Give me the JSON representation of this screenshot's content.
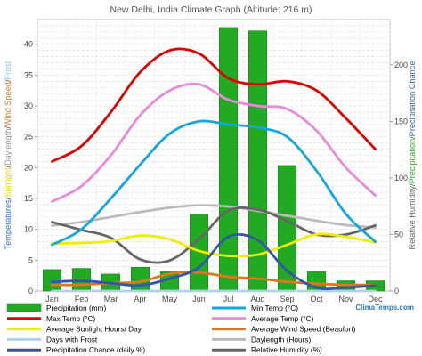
{
  "title": "New Delhi, India Climate Graph (Altitude: 216 m)",
  "brand": "ClimaTemps.com",
  "left_axis_label": [
    {
      "text": "Temperatures",
      "color": "#2277dd"
    },
    {
      "text": "/",
      "color": "#444444"
    },
    {
      "text": "Sunlight",
      "color": "#e8d800"
    },
    {
      "text": "/",
      "color": "#444444"
    },
    {
      "text": "Daylength",
      "color": "#999999"
    },
    {
      "text": "/",
      "color": "#444444"
    },
    {
      "text": "Wind Speed",
      "color": "#dd7722"
    },
    {
      "text": "/",
      "color": "#444444"
    },
    {
      "text": "Frost",
      "color": "#88c8ee"
    }
  ],
  "right_axis_label": [
    {
      "text": "Relative Humidity",
      "color": "#666666"
    },
    {
      "text": "/",
      "color": "#444444"
    },
    {
      "text": "Precipitation",
      "color": "#22aa22"
    },
    {
      "text": "/",
      "color": "#444444"
    },
    {
      "text": "Precipitation Chance",
      "color": "#3366aa"
    }
  ],
  "chart_data": {
    "type": "bar",
    "categories": [
      "Jan",
      "Feb",
      "Mar",
      "Apr",
      "May",
      "Jun",
      "Jul",
      "Aug",
      "Sep",
      "Oct",
      "Nov",
      "Dec"
    ],
    "y_left": {
      "ylim": [
        0,
        44
      ],
      "ticks": [
        0,
        5,
        10,
        15,
        20,
        25,
        30,
        35,
        40
      ]
    },
    "y_right": {
      "ylim": [
        0,
        240
      ],
      "ticks": [
        0,
        50,
        100,
        150,
        200
      ]
    },
    "grid": true,
    "bars": {
      "name": "Precipitation (mm)",
      "color": "#22aa22",
      "axis": "right",
      "values": [
        19,
        20,
        15,
        21,
        17,
        68,
        233,
        230,
        111,
        17,
        9,
        9
      ]
    },
    "series": [
      {
        "name": "Max Temp (°C)",
        "color": "#dd0000",
        "axis": "left",
        "values": [
          21,
          23.5,
          29,
          35.5,
          39,
          38.5,
          34.5,
          33.5,
          34,
          32.5,
          28,
          23
        ]
      },
      {
        "name": "Min Temp (°C)",
        "color": "#11a8e0",
        "axis": "left",
        "values": [
          7.5,
          10,
          15,
          20.5,
          25.5,
          27.5,
          27,
          26.5,
          25,
          19.5,
          12.5,
          8
        ]
      },
      {
        "name": "Average Temp (°C)",
        "color": "#e88ad8",
        "axis": "left",
        "values": [
          14.5,
          17,
          22,
          28.5,
          32.5,
          33.5,
          31,
          30,
          29.5,
          26,
          20,
          15.5
        ]
      },
      {
        "name": "Average Sunlight Hours/ Day",
        "color": "#f0ee00",
        "axis": "left",
        "values": [
          7.7,
          7.8,
          8.1,
          9,
          8.4,
          6.5,
          5.7,
          5.9,
          7.5,
          9.2,
          8.8,
          7.9
        ]
      },
      {
        "name": "Average Wind Speed (Beaufort)",
        "color": "#dd7722",
        "axis": "left",
        "values": [
          1,
          1,
          1.3,
          1.5,
          2.8,
          3,
          2.3,
          2,
          1.5,
          1.2,
          1,
          1
        ]
      },
      {
        "name": "Days with Frost",
        "color": "#aad4ee",
        "axis": "left",
        "values": [
          0,
          0,
          0,
          0,
          0,
          0,
          0,
          0,
          0,
          0,
          0,
          0
        ]
      },
      {
        "name": "Daylength (Hours)",
        "color": "#bbbbbb",
        "axis": "left",
        "values": [
          10.6,
          11.2,
          12,
          12.8,
          13.5,
          13.9,
          13.7,
          13,
          12.2,
          11.4,
          10.7,
          10.3
        ]
      },
      {
        "name": "Precipitation Chance (daily %)",
        "color": "#3355aa",
        "axis": "right",
        "values": [
          8,
          9,
          7,
          5,
          11,
          21,
          48,
          45,
          18,
          3,
          3,
          5
        ]
      },
      {
        "name": "Relative Humidity (%)",
        "color": "#666666",
        "axis": "right",
        "values": [
          61,
          54,
          47,
          28,
          27,
          46,
          71,
          72,
          62,
          50,
          50,
          58
        ]
      }
    ],
    "legend": [
      {
        "label": "Precipitation (mm)",
        "color": "#22aa22",
        "kind": "bar"
      },
      {
        "label": "Min Temp (°C)",
        "color": "#11a8e0",
        "kind": "line"
      },
      {
        "label": "Max Temp (°C)",
        "color": "#dd0000",
        "kind": "line"
      },
      {
        "label": "Average Temp (°C)",
        "color": "#e88ad8",
        "kind": "line"
      },
      {
        "label": "Average Sunlight Hours/ Day",
        "color": "#f0ee00",
        "kind": "line"
      },
      {
        "label": "Average Wind Speed (Beaufort)",
        "color": "#dd7722",
        "kind": "line"
      },
      {
        "label": "Days with Frost",
        "color": "#aad4ee",
        "kind": "line"
      },
      {
        "label": "Daylength (Hours)",
        "color": "#bbbbbb",
        "kind": "line"
      },
      {
        "label": "Precipitation Chance (daily %)",
        "color": "#3355aa",
        "kind": "line"
      },
      {
        "label": "Relative Humidity (%)",
        "color": "#666666",
        "kind": "line"
      }
    ],
    "legend_placement": "bottom"
  }
}
